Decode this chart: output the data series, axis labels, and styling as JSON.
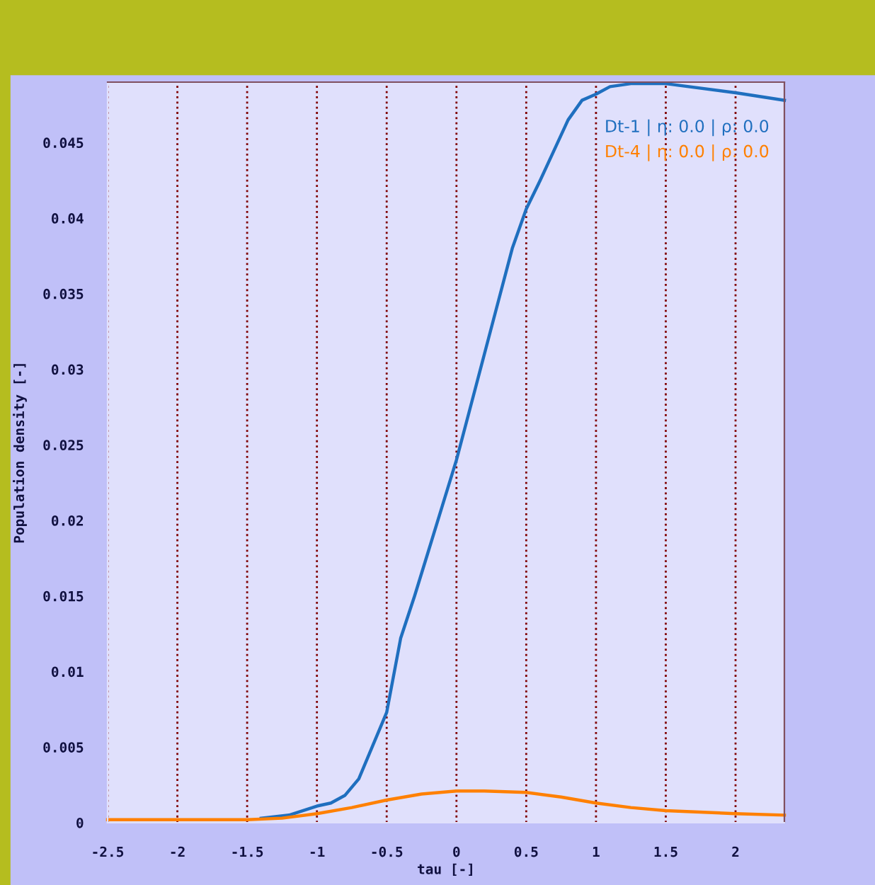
{
  "chart_data": {
    "type": "line",
    "xlabel": "tau [-]",
    "ylabel": "Population density [-]",
    "xlim": [
      -2.5,
      2.35
    ],
    "ylim": [
      0,
      0.049
    ],
    "xticks": [
      -2.5,
      -2,
      -1.5,
      -1,
      -0.5,
      0,
      0.5,
      1,
      1.5,
      2
    ],
    "yticks": [
      0,
      0.005,
      0.01,
      0.015,
      0.02,
      0.025,
      0.03,
      0.035,
      0.04,
      0.045
    ],
    "grid": "x",
    "legend": "top right",
    "marker": "none",
    "line_style": "solid",
    "series": [
      {
        "name": "Dt-1 | η: 0.0 | ρ: 0.0",
        "color": "#1f6fbf",
        "x": [
          -1.4,
          -1.2,
          -1,
          -0.9,
          -0.8,
          -0.7,
          -0.6,
          -0.5,
          -0.4,
          -0.3,
          -0.2,
          -0.1,
          0,
          0.1,
          0.2,
          0.3,
          0.4,
          0.5,
          0.6,
          0.7,
          0.8,
          0.9,
          1,
          1.1,
          1.25,
          1.5,
          2,
          2.35
        ],
        "values": [
          0.0003,
          0.0005,
          0.0011,
          0.0013,
          0.0018,
          0.0029,
          0.0051,
          0.0073,
          0.0122,
          0.015,
          0.018,
          0.021,
          0.024,
          0.0275,
          0.031,
          0.0345,
          0.038,
          0.0406,
          0.0425,
          0.0445,
          0.0465,
          0.0478,
          0.0482,
          0.0487,
          0.0489,
          0.0489,
          0.0483,
          0.0478
        ]
      },
      {
        "name": "Dt-4 | η: 0.0 | ρ: 0.0",
        "color": "#ff8000",
        "x": [
          -2.5,
          -2,
          -1.5,
          -1.25,
          -1,
          -0.75,
          -0.5,
          -0.25,
          0,
          0.2,
          0.5,
          0.75,
          1,
          1.25,
          1.5,
          2,
          2.35
        ],
        "values": [
          0.0002,
          0.0002,
          0.0002,
          0.0003,
          0.0006,
          0.001,
          0.0015,
          0.0019,
          0.0021,
          0.0021,
          0.002,
          0.0017,
          0.0013,
          0.001,
          0.0008,
          0.0006,
          0.0005
        ]
      }
    ]
  }
}
